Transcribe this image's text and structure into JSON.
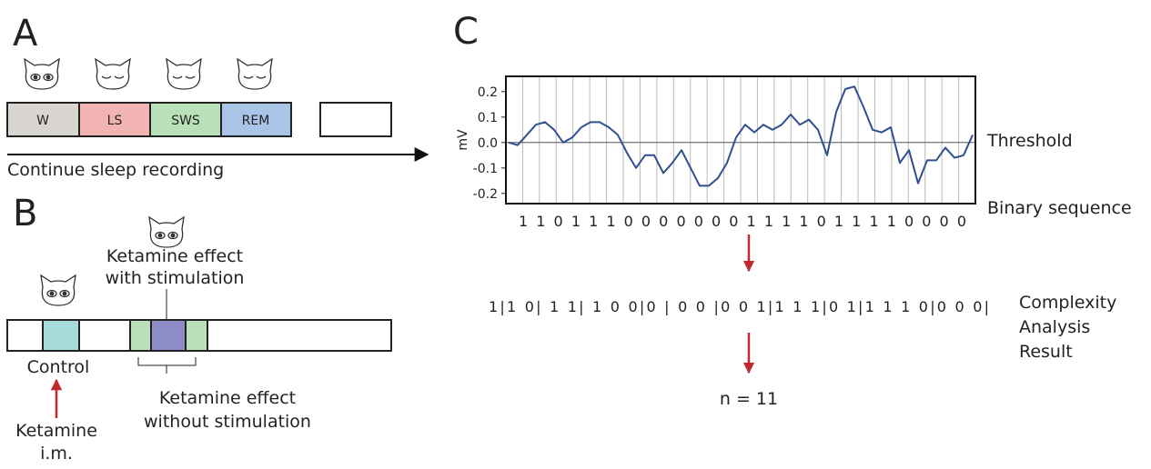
{
  "panel_a": {
    "letter": "A",
    "stages": [
      "W",
      "LS",
      "SWS",
      "REM"
    ],
    "caption": "Continue sleep recording"
  },
  "panel_b": {
    "letter": "B",
    "stim_label": [
      "Ketamine effect",
      "with stimulation"
    ],
    "control_label": "Control",
    "injection_label": [
      "Ketamine",
      "i.m."
    ],
    "nostim_label": [
      "Ketamine effect",
      "without stimulation"
    ]
  },
  "panel_c": {
    "letter": "C",
    "plot": {
      "ylabel": "mV",
      "ylim": [
        -0.24,
        0.26
      ],
      "yticks": [
        0.2,
        0.1,
        {
          "value": 0,
          "label": "0.0"
        },
        -0.1,
        -0.2
      ],
      "values": [
        0.0,
        -0.01,
        0.03,
        0.07,
        0.08,
        0.05,
        0.0,
        0.02,
        0.06,
        0.08,
        0.08,
        0.06,
        0.03,
        -0.04,
        -0.1,
        -0.05,
        -0.05,
        -0.12,
        -0.08,
        -0.03,
        -0.1,
        -0.17,
        -0.17,
        -0.14,
        -0.08,
        0.02,
        0.07,
        0.04,
        0.07,
        0.05,
        0.07,
        0.11,
        0.07,
        0.09,
        0.05,
        -0.05,
        0.12,
        0.21,
        0.22,
        0.14,
        0.05,
        0.04,
        0.06,
        -0.08,
        -0.03,
        -0.16,
        -0.07,
        -0.07,
        -0.02,
        -0.06,
        -0.05,
        0.03
      ]
    },
    "threshold_label": "Threshold",
    "binary_label": "Binary sequence",
    "binary_sequence": "1 1 0 1 1 1 0 0 0 0 0 0 0 1 1 1 1 0 1 1 1 1 0 0 0 0",
    "partition": "1|1 0| 1 1| 1 0 0|0 | 0 0 |0 0 1|1 1 1|0 1|1 1 1 0|0 0 0|",
    "analysis_label": [
      "Complexity",
      "Analysis",
      "Result"
    ],
    "result": "n = 11"
  }
}
